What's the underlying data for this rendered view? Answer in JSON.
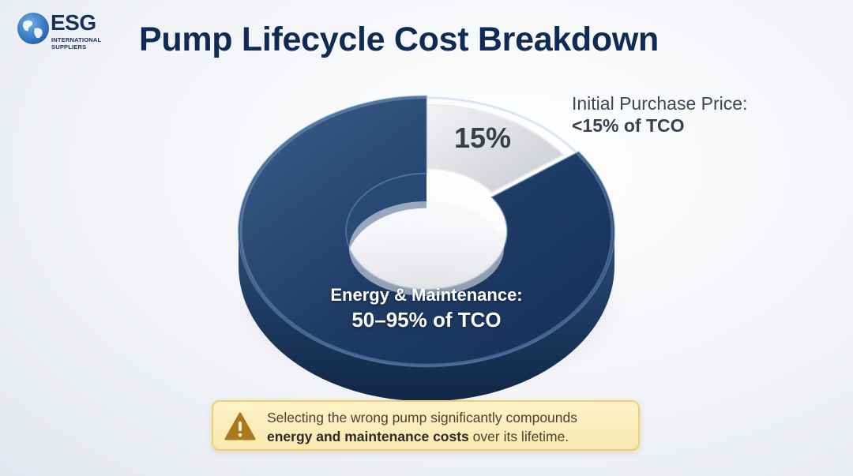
{
  "logo": {
    "word": "ESG",
    "line1": "INTERNATIONAL",
    "line2": "SUPPLIERS"
  },
  "title": "Pump Lifecycle Cost Breakdown",
  "chart_data": {
    "type": "pie",
    "title": "Pump Lifecycle Cost Breakdown",
    "slices": [
      {
        "label": "Initial Purchase Price",
        "value": 15,
        "value_label": "15%",
        "color": "#cfd2d6"
      },
      {
        "label": "Energy & Maintenance",
        "value": 85,
        "color": "#1f3d66"
      }
    ],
    "annotations": {
      "purchase_line1": "Initial Purchase Price:",
      "purchase_line2": "<15% of TCO",
      "energy_line1": "Energy & Maintenance:",
      "energy_line2": "50–95% of TCO"
    },
    "legend": "none"
  },
  "warning": {
    "text_before": "Selecting the wrong pump significantly compounds",
    "text_bold": "energy and maintenance costs",
    "text_after": " over its lifetime."
  },
  "colors": {
    "title": "#0f2a55",
    "ring_dark": "#1f3d66",
    "ring_light": "#cfd2d6",
    "warning_bg": "#fdf2c8",
    "warning_border": "#f0cf72",
    "warning_icon": "#a8791f"
  }
}
